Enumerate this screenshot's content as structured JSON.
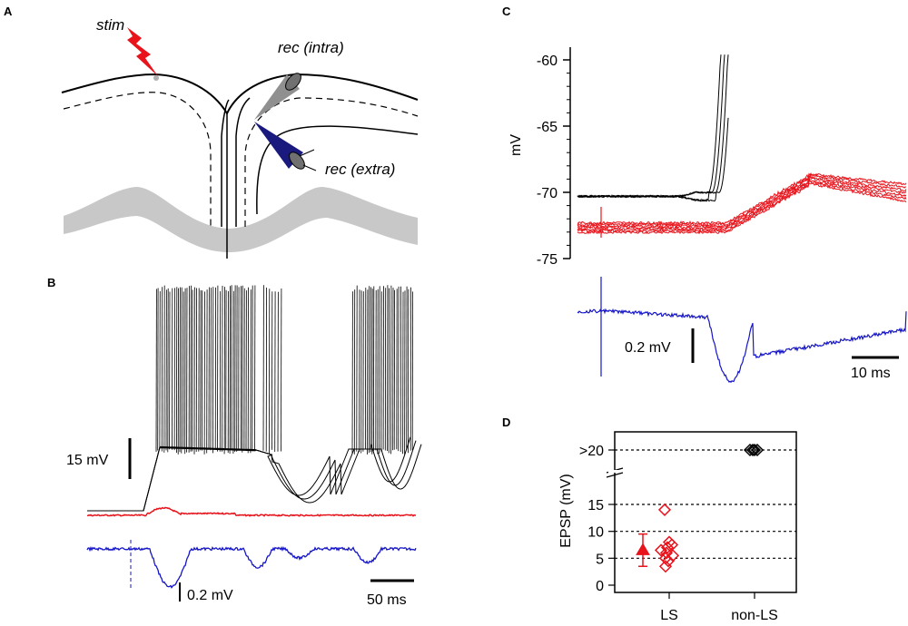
{
  "panels": {
    "a": "A",
    "b": "B",
    "c": "C",
    "d": "D"
  },
  "colors": {
    "black": "#000000",
    "red": "#e8131b",
    "blue": "#1515c8",
    "gray": "#c8c8c8",
    "dark_gray": "#808080"
  },
  "panel_a": {
    "stim": "stim",
    "rec_intra": "rec (intra)",
    "rec_extra": "rec (extra)"
  },
  "panel_b": {
    "scale_v": "15 mV",
    "scale_extra": "0.2 mV",
    "scale_t": "50 ms"
  },
  "panel_c": {
    "ylabel": "mV",
    "ticks": [
      "-60",
      "-65",
      "-70",
      "-75"
    ],
    "ylim": [
      -75,
      -60
    ],
    "scale_extra": "0.2 mV",
    "scale_t": "10 ms"
  },
  "chart_data": {
    "type": "scatter",
    "title": "",
    "xlabel": "",
    "ylabel": "EPSP (mV)",
    "categories": [
      "LS",
      "non-LS"
    ],
    "y_ticks": [
      "0",
      "5",
      "10",
      "15",
      ">20"
    ],
    "ylim": [
      0,
      22
    ],
    "series": [
      {
        "name": "LS",
        "color": "#e8131b",
        "marker": "diamond-open",
        "values": [
          14,
          8,
          7.5,
          7,
          6.5,
          6,
          5.5,
          5,
          4.5,
          3.5
        ]
      },
      {
        "name": "LS mean",
        "color": "#e8131b",
        "marker": "triangle-filled",
        "values": [
          6.5
        ],
        "error": [
          3
        ]
      },
      {
        "name": "non-LS",
        "color": "#000000",
        "marker": "diamond-open",
        "values": [
          20,
          20,
          20,
          20
        ]
      }
    ],
    "ref_lines": [
      5,
      10,
      15,
      20
    ]
  }
}
